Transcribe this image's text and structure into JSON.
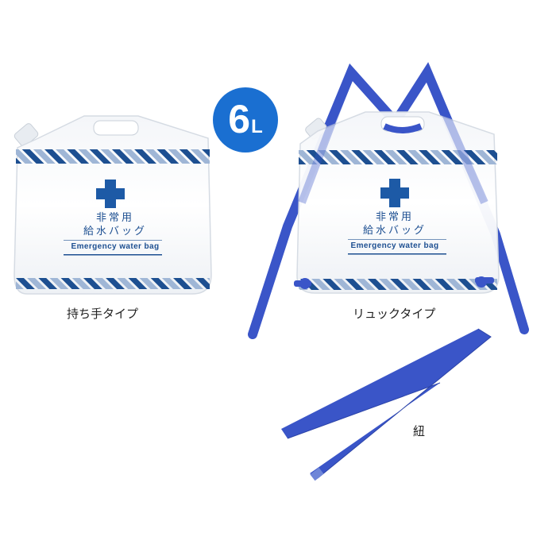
{
  "capacity_badge": {
    "number": "6",
    "unit": "L",
    "color": "#1a6fd1"
  },
  "bag_print": {
    "title_line1": "非常用",
    "title_line2": "給水バッグ",
    "subtitle": "Emergency water bag",
    "cross_color": "#1d5aa6",
    "stripe_dark": "#1d4f91",
    "stripe_light": "#9fb6d6"
  },
  "strap_color": "#3a55c8",
  "captions": {
    "handle_type": "持ち手タイプ",
    "backpack_type": "リュックタイプ",
    "strap": "紐"
  }
}
